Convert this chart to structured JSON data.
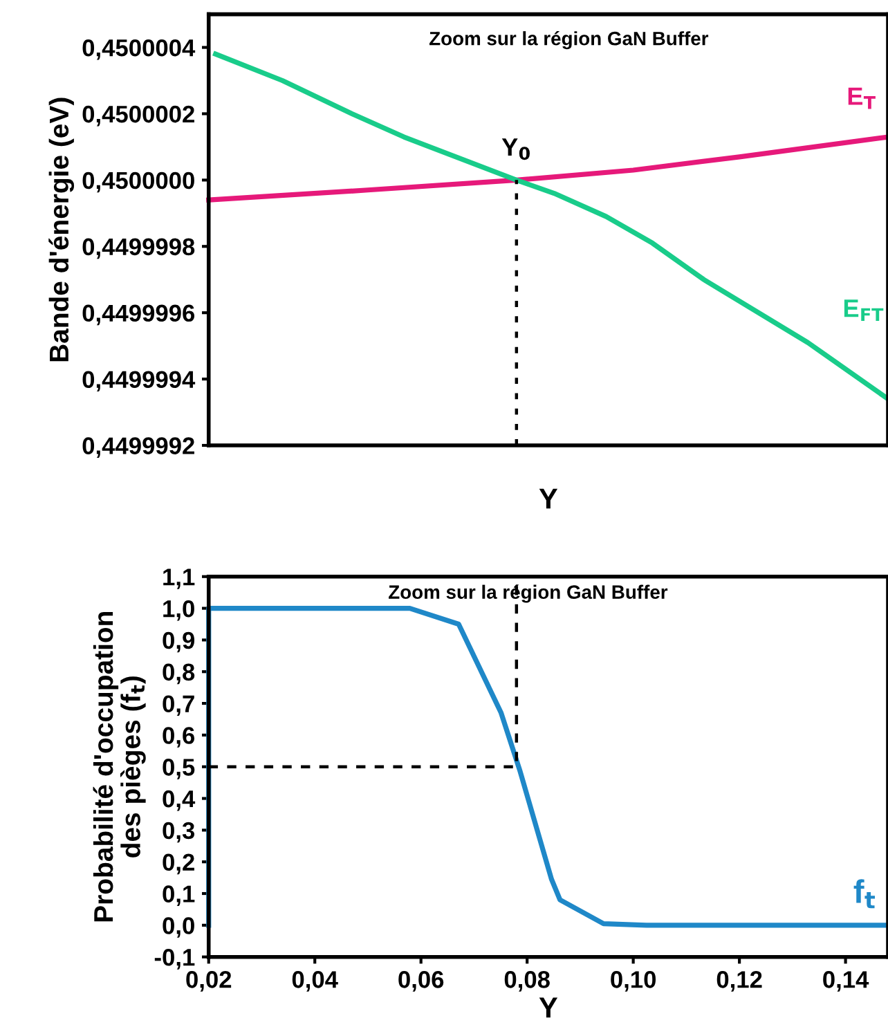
{
  "chart_data": [
    {
      "type": "line",
      "annotations": [
        "Zoom sur la région GaN Buffer",
        {
          "text": "Y$_{0}$",
          "x": 0.078,
          "y": 0.45
        }
      ],
      "xlabel": "Y",
      "ylabel": "Bande d'énergie (eV)",
      "xlim": [
        0.02,
        0.148
      ],
      "ylim": [
        0.4499992,
        0.4500005
      ],
      "tick_labels": "y",
      "grid": false,
      "legend": false,
      "yticks": [
        {
          "value": 0.4499992,
          "label": "0,4499992"
        },
        {
          "value": 0.4499994,
          "label": "0,4499994"
        },
        {
          "value": 0.4499996,
          "label": "0,4499996"
        },
        {
          "value": 0.4499998,
          "label": "0,4499998"
        },
        {
          "value": 0.45,
          "label": "0,4500000"
        },
        {
          "value": 0.4500002,
          "label": "0,4500002"
        },
        {
          "value": 0.4500004,
          "label": "0,4500004"
        }
      ],
      "series": [
        {
          "name": "E$_{T}$",
          "color": "#e6197a",
          "x": [
            0.02,
            0.05,
            0.078,
            0.1,
            0.12,
            0.148
          ],
          "values": [
            0.44999994,
            0.44999997,
            0.45,
            0.45000003,
            0.45000007,
            0.45000013
          ]
        },
        {
          "name": "E$_{FT}$",
          "color": "#19cc8a",
          "x": [
            0.0213,
            0.0339,
            0.047,
            0.0568,
            0.078,
            0.0851,
            0.0949,
            0.1036,
            0.1133,
            0.1329,
            0.148
          ],
          "values": [
            0.45000038,
            0.4500003,
            0.4500002,
            0.45000013,
            0.45,
            0.44999996,
            0.44999989,
            0.44999981,
            0.4499997,
            0.44999951,
            0.44999934
          ]
        },
        {
          "color": "#000000",
          "line_style": "dotted",
          "x": [
            0.078,
            0.078
          ],
          "values": [
            0.4499992,
            0.45
          ]
        }
      ]
    },
    {
      "type": "line",
      "annotations": [
        "Zoom sur la région GaN Buffer"
      ],
      "xlabel": "Y",
      "ylabel": "Probabilité d'occupation\ndes pièges (f$_{t}$)",
      "xlim": [
        0.02,
        0.148
      ],
      "ylim": [
        -0.1,
        1.1
      ],
      "grid": false,
      "legend": false,
      "xticks": [
        {
          "value": 0.02,
          "label": "0,02"
        },
        {
          "value": 0.04,
          "label": "0,04"
        },
        {
          "value": 0.06,
          "label": "0,06"
        },
        {
          "value": 0.08,
          "label": "0,08"
        },
        {
          "value": 0.1,
          "label": "0,10"
        },
        {
          "value": 0.12,
          "label": "0,12"
        },
        {
          "value": 0.14,
          "label": "0,14"
        }
      ],
      "yticks": [
        {
          "value": -0.1,
          "label": "-0,1"
        },
        {
          "value": 0.0,
          "label": "0,0"
        },
        {
          "value": 0.1,
          "label": "0,1"
        },
        {
          "value": 0.2,
          "label": "0,2"
        },
        {
          "value": 0.3,
          "label": "0,3"
        },
        {
          "value": 0.4,
          "label": "0,4"
        },
        {
          "value": 0.5,
          "label": "0,5"
        },
        {
          "value": 0.6,
          "label": "0,6"
        },
        {
          "value": 0.7,
          "label": "0,7"
        },
        {
          "value": 0.8,
          "label": "0,8"
        },
        {
          "value": 0.9,
          "label": "0,9"
        },
        {
          "value": 1.0,
          "label": "1,0"
        },
        {
          "value": 1.1,
          "label": "1,1"
        }
      ],
      "series": [
        {
          "name": "f$_{t}$",
          "color": "#1f88c8",
          "x": [
            0.02,
            0.02,
            0.0579,
            0.0671,
            0.0751,
            0.0786,
            0.0846,
            0.0862,
            0.0944,
            0.1025,
            0.148
          ],
          "values": [
            0.0,
            1.0,
            1.0,
            0.95,
            0.67,
            0.49,
            0.145,
            0.08,
            0.005,
            0.0,
            0.0
          ]
        },
        {
          "color": "#000000",
          "line_style": "dashed",
          "x": [
            0.02,
            0.078,
            0.078
          ],
          "values": [
            0.5,
            0.5,
            1.1
          ]
        }
      ]
    }
  ]
}
